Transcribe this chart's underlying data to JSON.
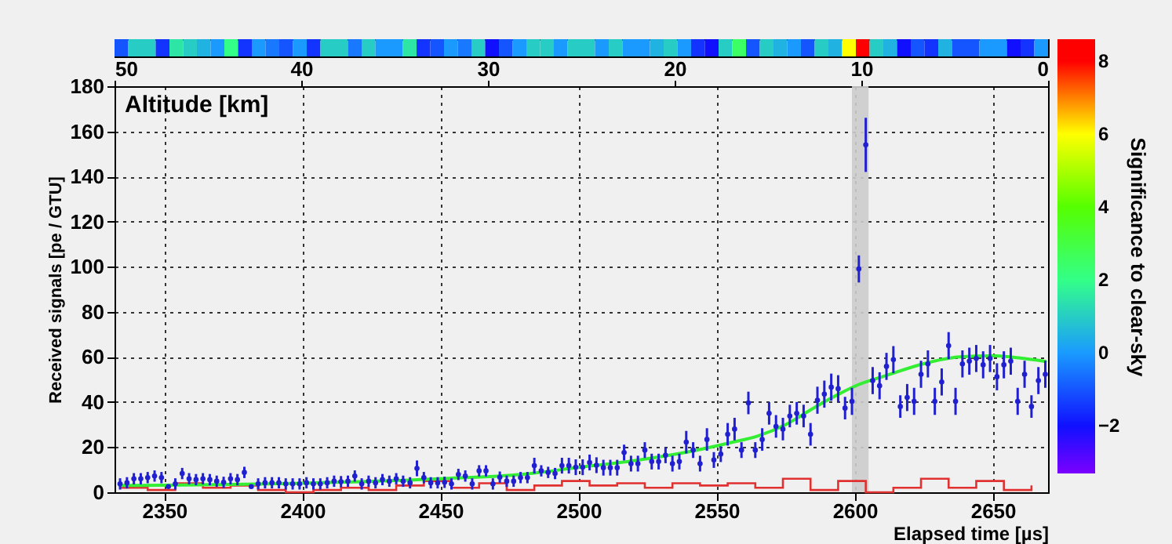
{
  "chart_data": [
    {
      "type": "heatmap",
      "clabel": "Significance to clear-sky",
      "clim": [
        -3.3,
        8.6
      ],
      "cticks": [
        -2,
        0,
        2,
        4,
        6,
        8
      ],
      "categories": [
        null,
        null,
        null,
        null,
        null,
        null,
        null,
        null,
        null,
        null,
        null,
        null,
        null,
        null,
        null,
        null,
        null,
        null,
        null,
        null,
        null,
        null,
        null,
        null,
        null,
        null,
        null,
        null,
        null,
        null,
        null,
        null,
        null,
        null,
        null,
        null,
        null,
        null,
        null,
        null,
        null,
        null,
        null,
        null,
        null,
        null,
        null,
        null,
        null,
        null,
        null,
        null,
        null,
        null,
        null,
        null,
        null,
        null,
        null,
        null,
        null,
        null,
        null,
        null,
        null,
        null,
        null,
        null
      ],
      "y_categories": [
        null
      ],
      "cells": [
        [
          -1,
          1,
          1,
          -1.5,
          1.5,
          1,
          0.5,
          0,
          2,
          -1.5,
          0,
          -0.5,
          -1,
          0,
          -1.5,
          1,
          1,
          -0.5,
          1,
          0,
          0,
          1.5,
          -1.5,
          -1,
          0,
          -0.5,
          1,
          -2,
          -1,
          0,
          1,
          1,
          0,
          1,
          1,
          0,
          1,
          0,
          0,
          0.5,
          1,
          0,
          -1.5,
          -2,
          1,
          2.5,
          -1,
          1,
          0.5,
          0,
          -1,
          1,
          0.5,
          6,
          8,
          1,
          0.5,
          -2,
          -1,
          -1.5,
          0.5,
          -1,
          -1,
          0,
          0,
          -2,
          -1.5,
          0
        ]
      ]
    },
    {
      "type": "scatter",
      "xlabel": "Elapsed time [µs]",
      "ylabel": "Received signals [pe / GTU]",
      "x2label": "Altitude [km]",
      "xlim": [
        2332,
        2670
      ],
      "xticks": [
        2350,
        2400,
        2450,
        2500,
        2550,
        2600,
        2650
      ],
      "ylim": [
        0,
        180
      ],
      "yticks": [
        0,
        20,
        40,
        60,
        80,
        100,
        120,
        140,
        160,
        180
      ],
      "x2lim": [
        50,
        0
      ],
      "x2ticks": [
        50,
        40,
        30,
        20,
        10,
        0
      ],
      "grid": true,
      "bands": [
        {
          "axis": "x",
          "from": 2599,
          "to": 2605,
          "color": "#cccccc"
        }
      ],
      "series": [
        {
          "type": "step",
          "color": "#e03030",
          "x": [
            2334,
            2344,
            2354,
            2364,
            2374,
            2384,
            2394,
            2404,
            2414,
            2424,
            2434,
            2444,
            2454,
            2464,
            2474,
            2484,
            2494,
            2504,
            2514,
            2524,
            2534,
            2544,
            2554,
            2564,
            2574,
            2584,
            2594,
            2604,
            2614,
            2624,
            2634,
            2644,
            2654,
            2664
          ],
          "values": [
            2,
            1,
            4,
            2,
            3,
            1,
            0,
            1,
            2,
            1,
            3,
            5,
            2,
            4,
            1,
            3,
            5,
            3,
            4,
            2,
            4,
            3,
            4,
            2,
            6,
            1,
            5,
            0,
            2,
            6,
            2,
            5,
            1,
            3
          ]
        },
        {
          "type": "line",
          "color": "#33ee33",
          "x": [
            2334,
            2400,
            2450,
            2480,
            2500,
            2520,
            2540,
            2555,
            2565,
            2575,
            2586,
            2595,
            2600,
            2612,
            2625,
            2638,
            2650,
            2660,
            2669
          ],
          "values": [
            3,
            4,
            6,
            8,
            11,
            14,
            18,
            22,
            25,
            30,
            38,
            44,
            47,
            52,
            57,
            60,
            60.5,
            59.5,
            58
          ]
        },
        {
          "type": "scatter",
          "color": "#2020d0",
          "marker": "circle",
          "x": [
            2334,
            2336.5,
            2339,
            2341.5,
            2344,
            2346.5,
            2349,
            2351.5,
            2354,
            2356.5,
            2359,
            2361.5,
            2364,
            2366.5,
            2369,
            2371.5,
            2374,
            2376.5,
            2379,
            2381.5,
            2384,
            2386.5,
            2389,
            2391.5,
            2394,
            2396.5,
            2399,
            2401.5,
            2404,
            2406.5,
            2409,
            2411.5,
            2414,
            2416.5,
            2419,
            2421.5,
            2424,
            2426.5,
            2429,
            2431.5,
            2434,
            2436.5,
            2439,
            2441.5,
            2444,
            2446.5,
            2449,
            2451.5,
            2454,
            2456.5,
            2459,
            2461.5,
            2464,
            2466.5,
            2469,
            2471.5,
            2474,
            2476.5,
            2479,
            2481.5,
            2484,
            2486.5,
            2489,
            2491.5,
            2494,
            2496.5,
            2499,
            2501.5,
            2504,
            2506.5,
            2509,
            2511.5,
            2514,
            2516.5,
            2519,
            2521.5,
            2524,
            2526.5,
            2529,
            2531.5,
            2534,
            2536.5,
            2539,
            2541.5,
            2544,
            2546.5,
            2549,
            2551.5,
            2554,
            2556.5,
            2559,
            2561.5,
            2564,
            2566.5,
            2569,
            2571.5,
            2574,
            2576.5,
            2579,
            2581.5,
            2584,
            2586.5,
            2589,
            2591.5,
            2594,
            2596.5,
            2599,
            2601.5,
            2604,
            2606.5,
            2609,
            2611.5,
            2614,
            2616.5,
            2619,
            2621.5,
            2624,
            2626.5,
            2629,
            2631.5,
            2634,
            2636.5,
            2639,
            2641.5,
            2644,
            2646.5,
            2649,
            2651.5,
            2654,
            2656.5,
            2659,
            2661.5,
            2664,
            2666.5,
            2669
          ],
          "values": [
            3.7,
            4.2,
            6.0,
            6.0,
            6.5,
            7.2,
            6.5,
            2.5,
            3.7,
            8.3,
            6.0,
            5.6,
            6.0,
            5.6,
            4.9,
            4.4,
            6.0,
            5.6,
            8.8,
            2.5,
            3.7,
            4.2,
            4.2,
            4.2,
            3.7,
            3.7,
            3.7,
            4.2,
            3.7,
            3.7,
            4.2,
            4.9,
            4.7,
            4.9,
            7.2,
            3.7,
            4.9,
            4.2,
            5.6,
            4.9,
            6.0,
            4.9,
            4.2,
            10.6,
            6.5,
            4.2,
            4.2,
            4.4,
            3.7,
            7.9,
            7.2,
            3.7,
            9.5,
            9.5,
            3.7,
            6.7,
            4.9,
            4.9,
            6.5,
            6.5,
            11.8,
            9.5,
            8.8,
            8.3,
            11.8,
            11.8,
            11.1,
            11.1,
            13.2,
            12.0,
            10.9,
            10.9,
            10.9,
            17.6,
            12.7,
            12.7,
            18.7,
            13.6,
            13.6,
            16.4,
            12.7,
            13.6,
            22.2,
            18.7,
            12.7,
            23.4,
            14.3,
            16.9,
            25.7,
            28.0,
            18.7,
            39.6,
            18.7,
            23.4,
            35.0,
            29.2,
            28.0,
            33.8,
            35.0,
            33.8,
            25.7,
            40.8,
            43.5,
            46.6,
            45.9,
            37.3,
            40.3,
            99,
            154,
            49.5,
            47.2,
            55.8,
            58.8,
            38.0,
            42.0,
            40.3,
            52.3,
            56.9,
            40.3,
            48.9,
            65.0,
            40.3,
            56.9,
            58.1,
            59.3,
            56.5,
            59.3,
            51.2,
            56.5,
            58.1,
            40.3,
            52.3,
            38.0,
            49.5,
            52.3
          ],
          "errors": [
            2.5,
            2.5,
            2.5,
            2.5,
            2.5,
            2.5,
            2.5,
            null,
            2.5,
            2.5,
            2.5,
            2.5,
            2.5,
            2.5,
            2.5,
            2.5,
            2.5,
            2.5,
            2.5,
            null,
            2.5,
            2.5,
            2.5,
            2.5,
            2.5,
            2.5,
            2.5,
            2.5,
            2.5,
            2.5,
            2.5,
            2.5,
            2.5,
            2.5,
            2.5,
            2.5,
            2.5,
            2.5,
            2.5,
            2.5,
            2.5,
            2.5,
            2.5,
            3.5,
            2.5,
            2.5,
            2.5,
            2.5,
            2.5,
            2.5,
            2.5,
            2.5,
            2.5,
            2.5,
            2.5,
            2.5,
            2.5,
            2.5,
            2.5,
            2.5,
            3.5,
            2.5,
            2.5,
            2.5,
            3.5,
            3.5,
            3.5,
            3.5,
            3.5,
            3.5,
            3.5,
            3.5,
            3.5,
            3.5,
            3.5,
            3.5,
            3.5,
            3.5,
            3.5,
            3.5,
            3.5,
            3.5,
            5,
            3.5,
            3.5,
            5,
            3.5,
            3.5,
            5,
            5,
            3.5,
            5,
            3.5,
            5,
            5,
            5,
            5,
            5,
            5,
            5,
            5,
            6,
            6,
            6,
            6,
            5,
            6,
            6,
            12,
            6,
            6,
            6,
            6,
            5,
            6,
            6,
            6,
            6,
            6,
            6,
            6,
            6,
            6,
            6,
            6,
            6,
            6,
            6,
            6,
            6,
            6,
            6,
            5,
            6,
            6
          ]
        }
      ]
    }
  ]
}
